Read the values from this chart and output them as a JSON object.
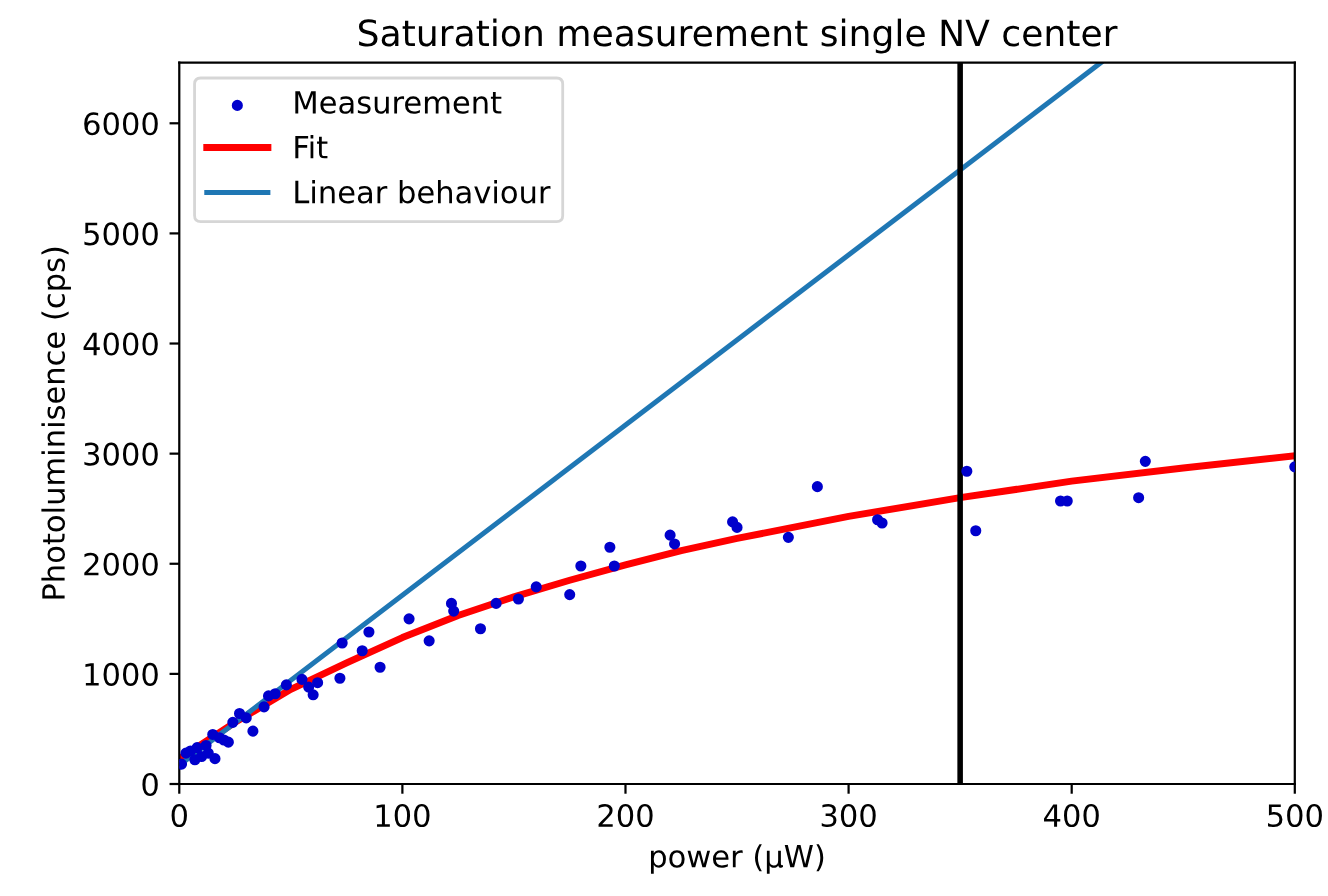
{
  "chart_data": {
    "type": "scatter",
    "title": "Saturation measurement single NV center",
    "xlabel": "power (µW)",
    "ylabel": "Photoluminisence (cps)",
    "xlim": [
      0,
      500
    ],
    "ylim": [
      0,
      6550
    ],
    "xticks": [
      0,
      100,
      200,
      300,
      400,
      500
    ],
    "yticks": [
      0,
      1000,
      2000,
      3000,
      4000,
      5000,
      6000
    ],
    "grid": false,
    "legend": "top left",
    "ref_lines": [
      {
        "axis": "x",
        "value": 350,
        "color": "#000000"
      }
    ],
    "series": [
      {
        "name": "Measurement",
        "color": "#0000cc",
        "marker": "circle",
        "x": [
          1,
          3,
          5,
          7,
          8,
          10,
          12,
          13,
          15,
          16,
          18,
          20,
          22,
          24,
          27,
          30,
          33,
          38,
          40,
          43,
          48,
          55,
          58,
          60,
          62,
          72,
          73,
          82,
          85,
          90,
          103,
          112,
          122,
          123,
          135,
          142,
          152,
          160,
          175,
          180,
          193,
          195,
          220,
          222,
          248,
          250,
          273,
          286,
          313,
          315,
          353,
          357,
          395,
          398,
          430,
          433,
          500
        ],
        "values": [
          180,
          280,
          300,
          220,
          330,
          250,
          350,
          280,
          450,
          230,
          420,
          400,
          380,
          560,
          640,
          600,
          480,
          700,
          800,
          820,
          900,
          950,
          880,
          810,
          920,
          960,
          1280,
          1210,
          1380,
          1060,
          1500,
          1300,
          1640,
          1570,
          1410,
          1640,
          1680,
          1790,
          1720,
          1980,
          2150,
          1980,
          2260,
          2180,
          2380,
          2330,
          2240,
          2700,
          2400,
          2370,
          2840,
          2300,
          2570,
          2570,
          2600,
          2930,
          2880
        ]
      },
      {
        "name": "Fit",
        "type": "line",
        "color": "#ff0000",
        "marker": "none",
        "x": [
          0,
          25,
          50,
          75,
          100,
          125,
          150,
          175,
          200,
          225,
          250,
          300,
          350,
          400,
          450,
          500
        ],
        "values": [
          230,
          560,
          860,
          1100,
          1330,
          1530,
          1700,
          1850,
          1990,
          2120,
          2230,
          2430,
          2600,
          2750,
          2870,
          2980
        ]
      },
      {
        "name": "Linear behaviour",
        "type": "line",
        "color": "#1f77b4",
        "marker": "none",
        "x": [
          0,
          413
        ],
        "values": [
          170,
          6550
        ]
      }
    ]
  }
}
